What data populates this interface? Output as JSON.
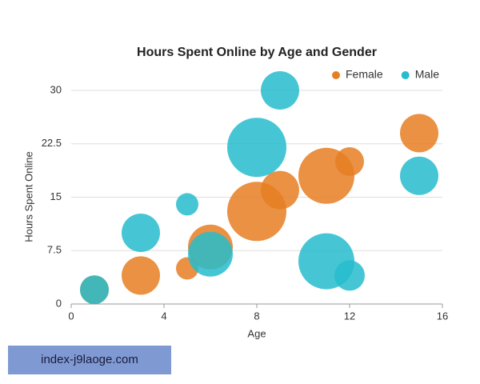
{
  "chart_data": {
    "type": "bubble",
    "title": "Hours Spent Online by Age and Gender",
    "x_label": "Age",
    "y_label": "Hours Spent Online",
    "xlim": [
      0,
      16
    ],
    "xticks": [
      0,
      4,
      8,
      12,
      16
    ],
    "ylim": [
      0,
      30
    ],
    "yticks": [
      0,
      7.5,
      15,
      22.5,
      30
    ],
    "grid": true,
    "legend": "top-right",
    "series": [
      {
        "name": "Female",
        "color": "#e67e22",
        "x": [
          1,
          3,
          5,
          6,
          8,
          9,
          11,
          12,
          15
        ],
        "values": [
          2,
          4,
          5,
          8,
          13,
          16,
          18,
          20,
          24
        ],
        "sizes": [
          18,
          24,
          14,
          28,
          37,
          24,
          35,
          18,
          24
        ]
      },
      {
        "name": "Male",
        "color": "#26bccd",
        "x": [
          1,
          3,
          5,
          6,
          8,
          9,
          11,
          12,
          15
        ],
        "values": [
          2,
          10,
          14,
          7,
          22,
          30,
          6,
          4,
          18
        ],
        "sizes": [
          18,
          24,
          14,
          28,
          37,
          24,
          35,
          19,
          24
        ]
      }
    ]
  },
  "watermark": "index-j9laoge.com"
}
